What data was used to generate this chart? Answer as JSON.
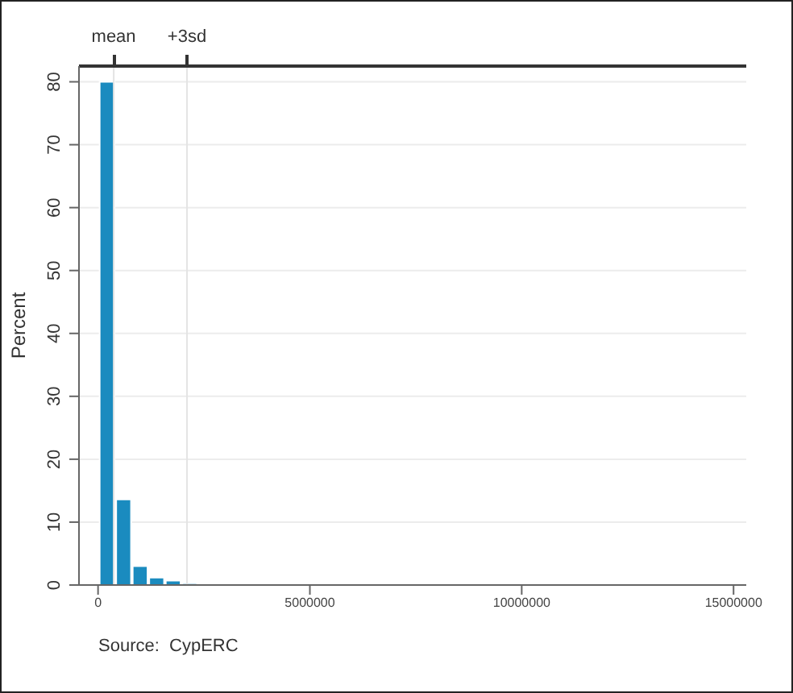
{
  "chart_data": {
    "type": "histogram",
    "ylabel": "Percent",
    "bins": [
      0,
      390000,
      780000,
      1170000,
      1560000,
      1950000,
      2340000,
      2730000,
      3120000,
      3510000,
      3900000,
      4290000,
      4680000,
      5070000,
      5460000,
      5850000,
      6240000,
      6630000,
      7020000,
      7410000,
      7800000,
      8190000,
      8580000,
      8970000,
      9360000,
      9750000,
      10140000,
      10530000,
      10920000,
      11310000,
      11700000,
      12090000,
      12480000,
      12870000,
      13260000,
      13650000,
      14040000,
      14430000,
      14820000,
      15210000
    ],
    "values": [
      80,
      13.6,
      3.0,
      1.2,
      0.7,
      0.3,
      0.2,
      0.1,
      0,
      0,
      0,
      0,
      0,
      0,
      0,
      0,
      0,
      0,
      0,
      0,
      0,
      0,
      0,
      0,
      0,
      0,
      0,
      0,
      0,
      0,
      0,
      0,
      0,
      0,
      0,
      0,
      0,
      0,
      0
    ],
    "color": "#1a8bbf",
    "xlim": [
      -450000,
      15300000
    ],
    "xticks": [
      0,
      5000000,
      10000000,
      15000000
    ],
    "ylim": [
      0,
      82.5
    ],
    "yticks": [
      0,
      10,
      20,
      30,
      40,
      50,
      60,
      70,
      80
    ],
    "grid": "y",
    "ref_lines": [
      {
        "axis": "x",
        "value": 370000,
        "label": "mean",
        "color": "#e4e4e4"
      },
      {
        "axis": "x",
        "value": 2100000,
        "label": "+3sd",
        "color": "#e4e4e4"
      }
    ],
    "annotations": [
      "Source:  CypERC"
    ]
  }
}
